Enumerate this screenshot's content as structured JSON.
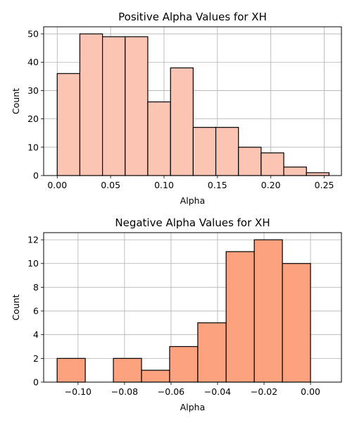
{
  "chart_data": [
    {
      "type": "bar",
      "title": "Positive Alpha Values for XH",
      "xlabel": "Alpha",
      "ylabel": "Count",
      "xlim": [
        -0.0127,
        0.2661
      ],
      "ylim": [
        0,
        52.5
      ],
      "xticks": [
        0.0,
        0.05,
        0.1,
        0.15,
        0.2,
        0.25
      ],
      "xtick_labels": [
        "0.00",
        "0.05",
        "0.10",
        "0.15",
        "0.20",
        "0.25"
      ],
      "yticks": [
        0,
        10,
        20,
        30,
        40,
        50
      ],
      "ytick_labels": [
        "0",
        "10",
        "20",
        "30",
        "40",
        "50"
      ],
      "grid": true,
      "bar_color": "#FCC5B3",
      "edge_color": "#000000",
      "bin_edges": [
        0.0,
        0.0212,
        0.0424,
        0.0636,
        0.0848,
        0.1061,
        0.1273,
        0.1485,
        0.1697,
        0.1909,
        0.2121,
        0.2333,
        0.2545
      ],
      "values": [
        36,
        50,
        49,
        49,
        26,
        38,
        17,
        17,
        10,
        8,
        3,
        1
      ]
    },
    {
      "type": "bar",
      "title": "Negative Alpha Values for XH",
      "xlabel": "Alpha",
      "ylabel": "Count",
      "xlim": [
        -0.1148,
        0.0133
      ],
      "ylim": [
        0,
        12.6
      ],
      "xticks": [
        -0.1,
        -0.08,
        -0.06,
        -0.04,
        -0.02,
        0.0
      ],
      "xtick_labels": [
        "−0.10",
        "−0.08",
        "−0.06",
        "−0.04",
        "−0.02",
        "0.00"
      ],
      "yticks": [
        0,
        2,
        4,
        6,
        8,
        10,
        12
      ],
      "ytick_labels": [
        "0",
        "2",
        "4",
        "6",
        "8",
        "10",
        "12"
      ],
      "grid": true,
      "bar_color": "#FCA27F",
      "edge_color": "#000000",
      "bin_edges": [
        -0.109,
        -0.0969,
        -0.0848,
        -0.0727,
        -0.0606,
        -0.0485,
        -0.0363,
        -0.0242,
        -0.0121,
        0.0
      ],
      "values": [
        2,
        0,
        2,
        1,
        3,
        5,
        11,
        12,
        10
      ]
    }
  ]
}
